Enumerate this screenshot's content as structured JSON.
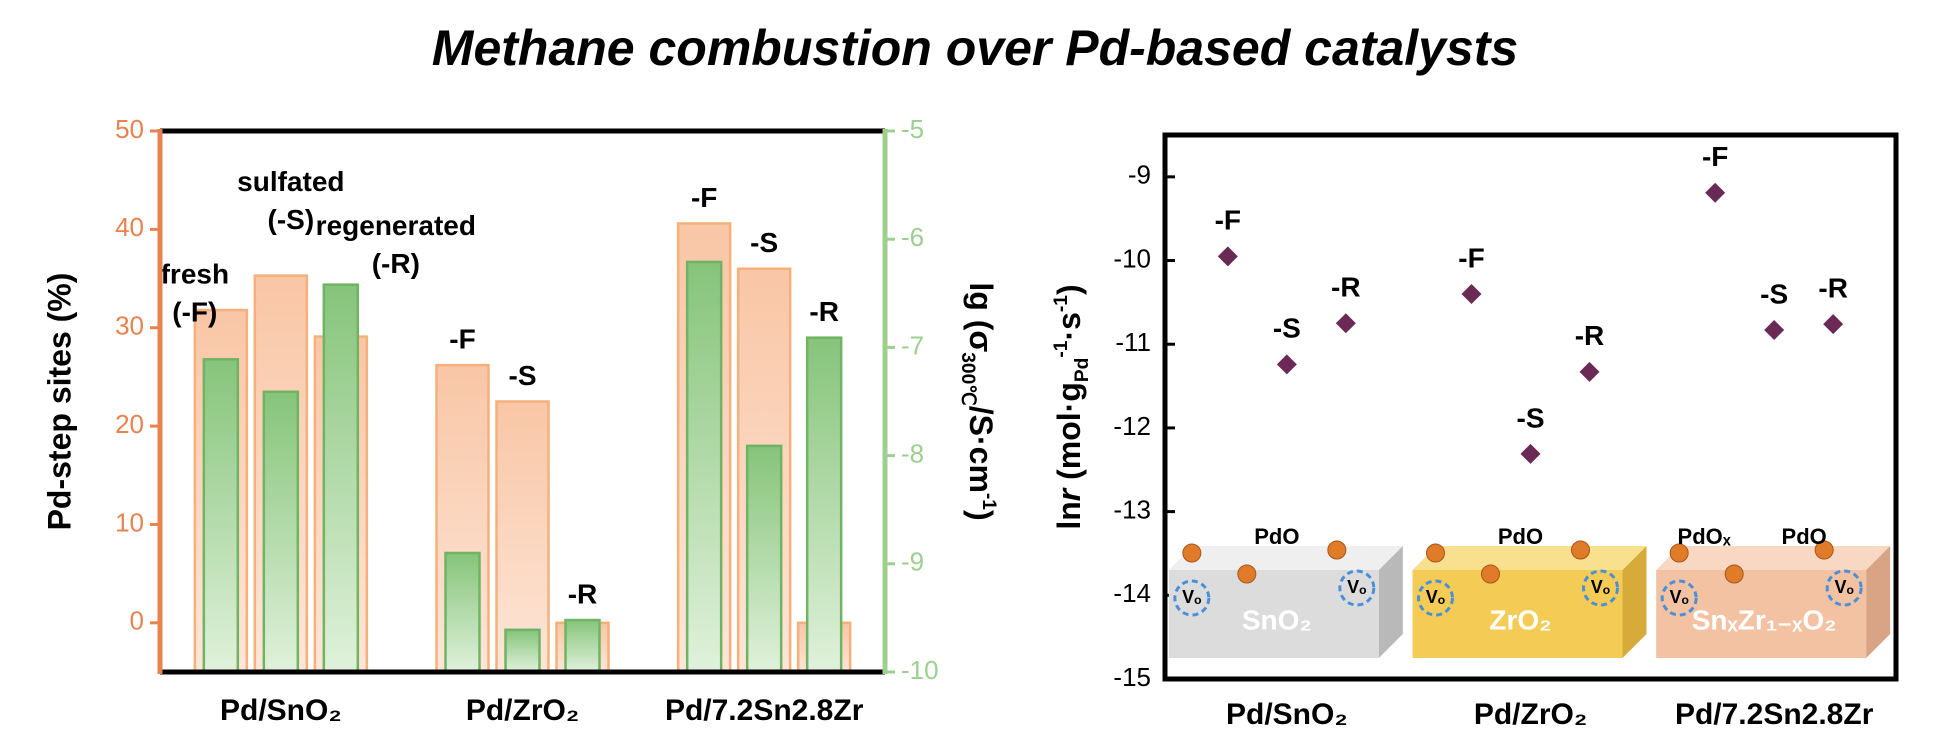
{
  "title": "Methane combustion over Pd-based catalysts",
  "chart_data": [
    {
      "type": "dual-bar",
      "categories": [
        "Pd/SnO₂",
        "Pd/ZrO₂",
        "Pd/7.2Sn2.8Zr"
      ],
      "ylabel": "Pd-step sites (%)",
      "y2label": [
        "lg (σ",
        "300℃",
        "/S·cm",
        "-1",
        ")"
      ],
      "ylim": [
        -5,
        50
      ],
      "yticks": [
        0,
        10,
        20,
        30,
        40,
        50
      ],
      "y2lim": [
        -10,
        -5
      ],
      "y2ticks": [
        -5,
        -6,
        -7,
        -8,
        -9,
        -10
      ],
      "series": [
        {
          "color": "#f9c6a6",
          "values": [
            [
              31.8,
              35.3,
              29.1
            ],
            [
              26.2,
              22.5,
              0
            ],
            [
              40.6,
              36.0,
              0
            ]
          ]
        },
        {
          "color": "#86c47a",
          "axis": "y2",
          "values": [
            [
              -7.11,
              -7.41,
              -6.42
            ],
            [
              -8.9,
              -9.61,
              -9.52
            ],
            [
              -6.21,
              -7.91,
              -6.91
            ]
          ]
        }
      ],
      "bar_labels": [
        [
          [
            "fresh",
            "(-F)"
          ],
          [
            "sulfated",
            "(-S)"
          ],
          [
            "regenerated",
            "(-R)"
          ]
        ],
        [
          [
            "-F"
          ],
          [
            "-S"
          ],
          [
            "-R"
          ]
        ],
        [
          [
            "-F"
          ],
          [
            "-S"
          ],
          [
            "-R"
          ]
        ]
      ]
    },
    {
      "type": "scatter",
      "categories": [
        "Pd/SnO₂",
        "Pd/ZrO₂",
        "Pd/7.2Sn2.8Zr"
      ],
      "ylabel": [
        "ln",
        "r",
        " (mol·g",
        "Pd",
        "-1",
        "·s",
        "-1",
        ")"
      ],
      "ylim": [
        -15,
        -8.5
      ],
      "yticks": [
        -9,
        -10,
        -11,
        -12,
        -13,
        -14,
        -15
      ],
      "color": "#6b2a55",
      "values": [
        [
          -9.95,
          -11.24,
          -10.75
        ],
        [
          -10.4,
          -12.31,
          -11.33
        ],
        [
          -9.19,
          -10.83,
          -10.76
        ]
      ],
      "point_labels": [
        [
          "-F",
          "-S",
          "-R"
        ],
        [
          "-F",
          "-S",
          "-R"
        ],
        [
          "-F",
          "-S",
          "-R"
        ]
      ],
      "vacancy": "Vₒ",
      "insets": [
        {
          "substrate": "SnO₂",
          "particles": [
            "PdO"
          ]
        },
        {
          "substrate": "ZrO₂",
          "particles": [
            "PdO"
          ]
        },
        {
          "substrate": "SnₓZr₁₋ₓO₂",
          "particles": [
            "PdOₓ",
            "PdO"
          ]
        }
      ]
    }
  ]
}
